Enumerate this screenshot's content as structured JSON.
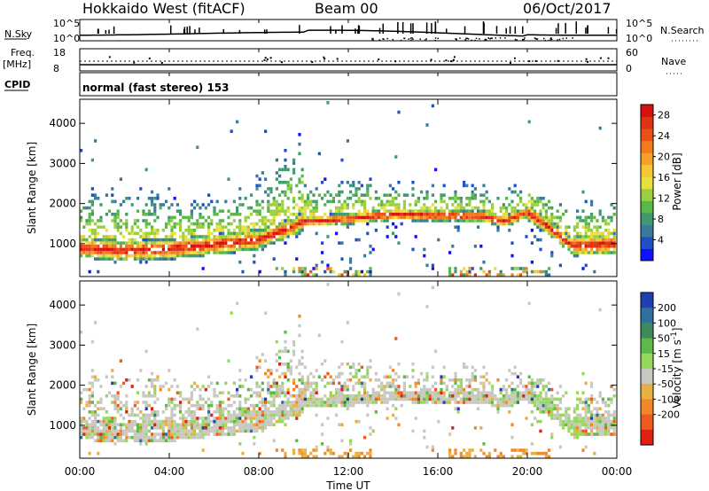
{
  "header": {
    "radar": "Hokkaido West (fitACF)",
    "beam": "Beam 00",
    "date": "06/Oct/2017"
  },
  "status_panels": {
    "nsky_label": "N.Sky",
    "nsky_ticks": [
      "10^5",
      "10^0"
    ],
    "nsearch_label": "N.Search",
    "nsearch_ticks": [
      "10^5",
      "10^0"
    ],
    "freq_label": "Freq.",
    "freq_unit": "[MHz]",
    "freq_ticks": [
      "18",
      "8"
    ],
    "nave_label": "Nave",
    "nave_ticks": [
      "60",
      "0"
    ],
    "cpid_label": "CPID",
    "cpid_text": "normal (fast stereo) 153"
  },
  "chart_data": [
    {
      "type": "heatmap",
      "panel": "power",
      "ylabel": "Slant Range [km]",
      "x_ticks": [
        "00:00",
        "04:00",
        "08:00",
        "12:00",
        "16:00",
        "20:00",
        "00:00"
      ],
      "y_ticks": [
        1000,
        2000,
        3000,
        4000
      ],
      "xlim_hours": [
        0,
        24
      ],
      "ylim_km": [
        180,
        4600
      ],
      "colorbar": {
        "label": "Power [dB]",
        "ticks": [
          4,
          8,
          12,
          16,
          20,
          24,
          28
        ],
        "range": [
          0,
          30
        ],
        "colors": [
          "#1010ff",
          "#2050c8",
          "#3a7a9a",
          "#3f9a6e",
          "#5ab84a",
          "#9ad040",
          "#e8e040",
          "#f5c832",
          "#f5a028",
          "#f07a1e",
          "#ea5018",
          "#e03214",
          "#d81010"
        ]
      },
      "band_center_km": [
        {
          "h": 0,
          "km": 900
        },
        {
          "h": 2,
          "km": 820
        },
        {
          "h": 4,
          "km": 860
        },
        {
          "h": 6,
          "km": 980
        },
        {
          "h": 8,
          "km": 1100
        },
        {
          "h": 9,
          "km": 1300
        },
        {
          "h": 10,
          "km": 1550
        },
        {
          "h": 12,
          "km": 1620
        },
        {
          "h": 14,
          "km": 1720
        },
        {
          "h": 16,
          "km": 1700
        },
        {
          "h": 18,
          "km": 1680
        },
        {
          "h": 19,
          "km": 1560
        },
        {
          "h": 20,
          "km": 1780
        },
        {
          "h": 21,
          "km": 1400
        },
        {
          "h": 22,
          "km": 950
        },
        {
          "h": 24,
          "km": 1000
        }
      ]
    },
    {
      "type": "heatmap",
      "panel": "velocity",
      "ylabel": "Slant Range [km]",
      "xlabel": "Time UT",
      "x_ticks": [
        "00:00",
        "04:00",
        "08:00",
        "12:00",
        "16:00",
        "20:00",
        "00:00"
      ],
      "y_ticks": [
        1000,
        2000,
        3000,
        4000
      ],
      "xlim_hours": [
        0,
        24
      ],
      "ylim_km": [
        180,
        4600
      ],
      "colorbar": {
        "label": "Velocity [m s^-1]",
        "ticks": [
          200,
          100,
          50,
          15,
          -15,
          -50,
          -100,
          -200
        ],
        "colors": [
          "#2040b0",
          "#3070a0",
          "#3e8a5a",
          "#5fb84a",
          "#96d85a",
          "#c8c8c0",
          "#e8b040",
          "#f08828",
          "#f05a1e",
          "#e02010"
        ]
      }
    }
  ]
}
